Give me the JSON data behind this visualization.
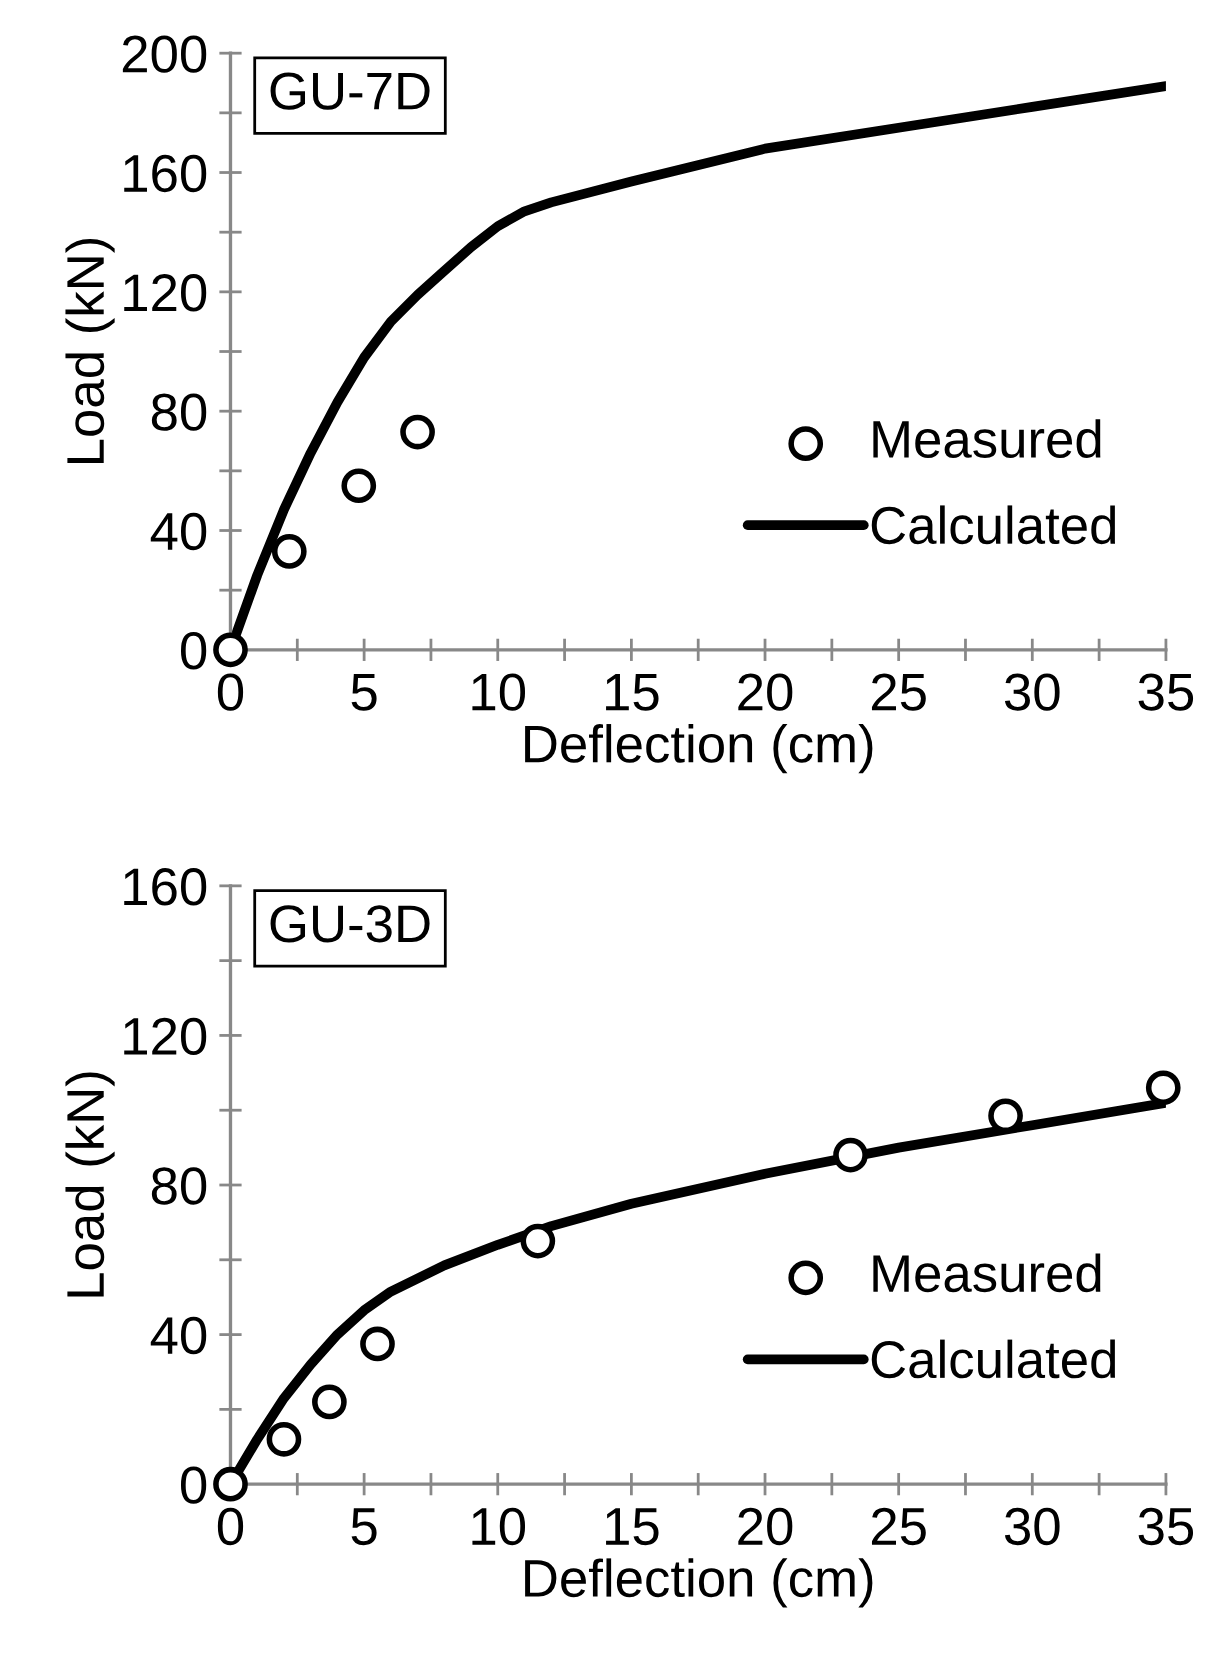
{
  "chart_data": [
    {
      "type": "scatter",
      "xlabel": "Deflection (cm)",
      "ylabel": "Load (kN)",
      "annotations": [
        "GU-7D"
      ],
      "xlim": [
        0,
        35
      ],
      "ylim": [
        0,
        200
      ],
      "xticks": [
        0,
        {
          "value": 2.5,
          "label": null
        },
        5,
        {
          "value": 7.5,
          "label": null
        },
        10,
        {
          "value": 12.5,
          "label": null
        },
        15,
        {
          "value": 17.5,
          "label": null
        },
        20,
        {
          "value": 22.5,
          "label": null
        },
        25,
        {
          "value": 27.5,
          "label": null
        },
        30,
        {
          "value": 32.5,
          "label": null
        },
        35
      ],
      "yticks": [
        0,
        {
          "value": 20,
          "label": null
        },
        40,
        {
          "value": 60,
          "label": null
        },
        80,
        {
          "value": 100,
          "label": null
        },
        120,
        {
          "value": 140,
          "label": null
        },
        160,
        {
          "value": 180,
          "label": null
        },
        200
      ],
      "grid": false,
      "legend": "bottom right",
      "series": [
        {
          "name": "Measured",
          "marker": "circle",
          "color": "#000000",
          "x": [
            0,
            2.2,
            4.8,
            7
          ],
          "values": [
            0,
            33,
            55,
            73
          ]
        },
        {
          "name": "Calculated",
          "type": "line",
          "marker": "none",
          "line_style": "solid",
          "color": "#000000",
          "x": [
            0,
            1,
            2,
            3,
            4,
            5,
            6,
            7,
            8,
            9,
            10,
            11,
            12,
            15,
            20,
            25,
            30,
            35
          ],
          "values": [
            0,
            25,
            47,
            66,
            83,
            98,
            110,
            119,
            127,
            135,
            142,
            147,
            150,
            157,
            168,
            175,
            182,
            189
          ]
        }
      ]
    },
    {
      "type": "scatter",
      "xlabel": "Deflection (cm)",
      "ylabel": "Load (kN)",
      "annotations": [
        "GU-3D"
      ],
      "xlim": [
        0,
        35
      ],
      "ylim": [
        0,
        160
      ],
      "xticks": [
        0,
        {
          "value": 2.5,
          "label": null
        },
        5,
        {
          "value": 7.5,
          "label": null
        },
        10,
        {
          "value": 12.5,
          "label": null
        },
        15,
        {
          "value": 17.5,
          "label": null
        },
        20,
        {
          "value": 22.5,
          "label": null
        },
        25,
        {
          "value": 27.5,
          "label": null
        },
        30,
        {
          "value": 32.5,
          "label": null
        },
        35
      ],
      "yticks": [
        0,
        {
          "value": 20,
          "label": null
        },
        40,
        {
          "value": 60,
          "label": null
        },
        80,
        {
          "value": 100,
          "label": null
        },
        120,
        {
          "value": 140,
          "label": null
        },
        160
      ],
      "grid": false,
      "legend": "bottom right",
      "series": [
        {
          "name": "Measured",
          "marker": "circle",
          "color": "#000000",
          "x": [
            0,
            2,
            3.7,
            5.5,
            11.5,
            23.2,
            29,
            34.9
          ],
          "values": [
            0,
            12,
            22,
            37.5,
            65,
            88,
            98.5,
            106
          ]
        },
        {
          "name": "Calculated",
          "type": "line",
          "marker": "none",
          "line_style": "solid",
          "color": "#000000",
          "x": [
            0,
            1,
            2,
            3,
            4,
            5,
            6,
            8,
            10,
            12,
            15,
            20,
            25,
            30,
            35
          ],
          "values": [
            0,
            12,
            23,
            32,
            40,
            46.5,
            51.5,
            58.5,
            64,
            69,
            75,
            83,
            90,
            96,
            102
          ]
        }
      ]
    }
  ]
}
